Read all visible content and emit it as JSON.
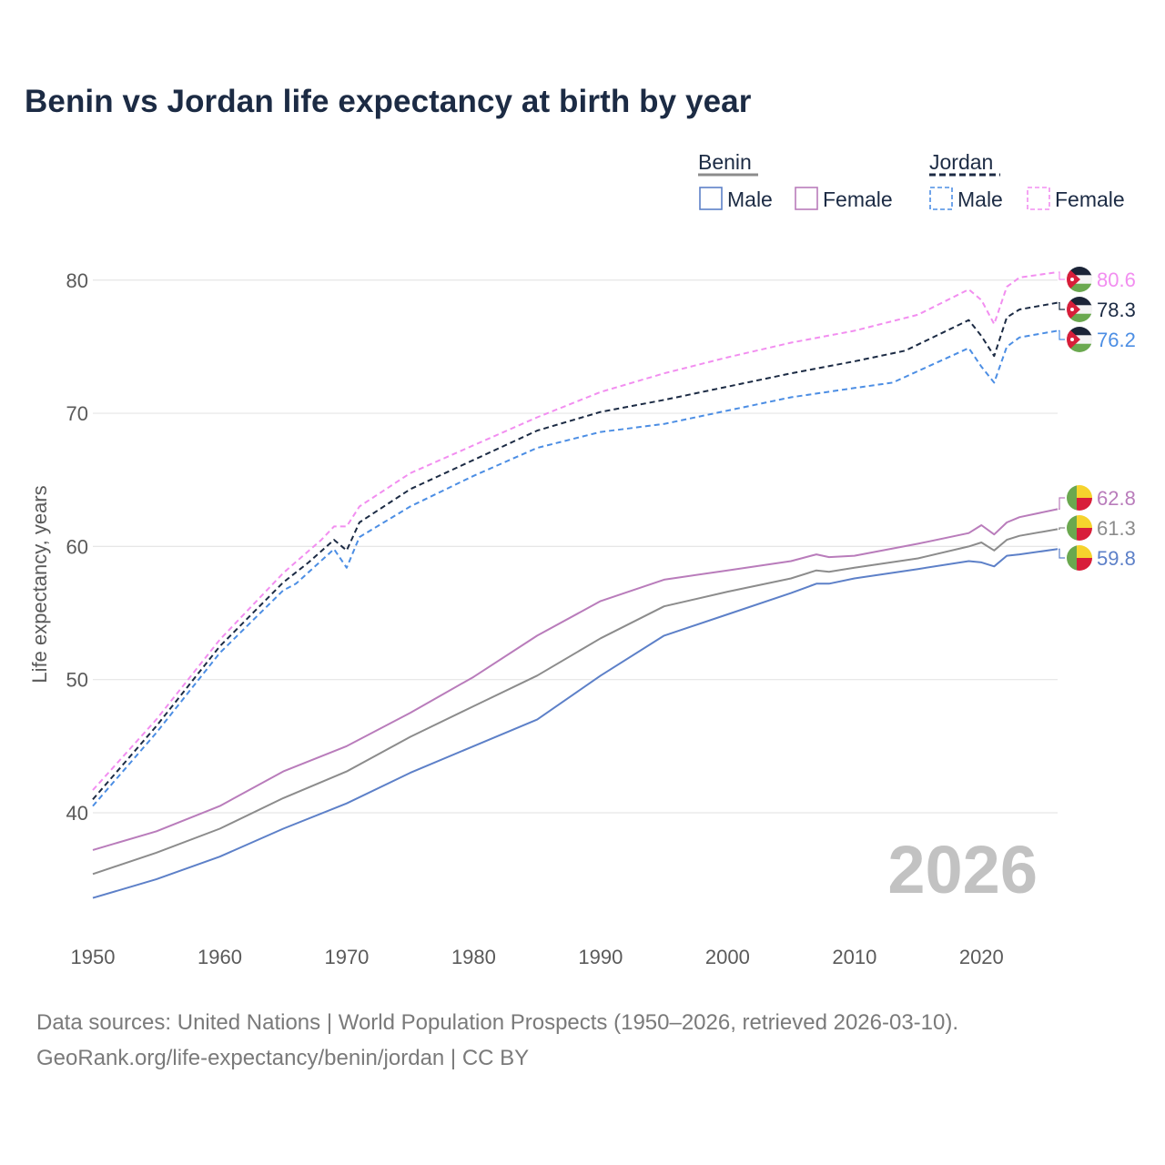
{
  "chart_data": {
    "type": "line",
    "title": "Benin vs Jordan life expectancy at birth by year",
    "ylabel": "Life expectancy, years",
    "xlabel": "",
    "xlim": [
      1950,
      2026
    ],
    "ylim": [
      32,
      86
    ],
    "x_ticks": [
      1950,
      1960,
      1970,
      1980,
      1990,
      2000,
      2010,
      2020
    ],
    "y_ticks": [
      40,
      50,
      60,
      70,
      80
    ],
    "grid": true,
    "current_year": "2026",
    "legend": {
      "placement": "top-right",
      "groups": [
        {
          "country": "Benin",
          "line_style": "solid",
          "color": "#8c8c8c",
          "entries": [
            "Male",
            "Female"
          ]
        },
        {
          "country": "Jordan",
          "line_style": "dashed",
          "color": "#1c2b44",
          "entries": [
            "Male",
            "Female"
          ]
        }
      ]
    },
    "series": [
      {
        "name": "Jordan Female",
        "country": "Jordan",
        "sex": "Female",
        "style": "dashed",
        "color": "#f28ef0",
        "end_label": "80.6",
        "points": [
          [
            1950,
            41.7
          ],
          [
            1955,
            47.0
          ],
          [
            1960,
            53.0
          ],
          [
            1965,
            58.0
          ],
          [
            1968,
            60.5
          ],
          [
            1969,
            61.5
          ],
          [
            1970,
            61.5
          ],
          [
            1971,
            63.0
          ],
          [
            1975,
            65.5
          ],
          [
            1980,
            67.6
          ],
          [
            1985,
            69.7
          ],
          [
            1990,
            71.6
          ],
          [
            1995,
            73.0
          ],
          [
            2000,
            74.2
          ],
          [
            2005,
            75.3
          ],
          [
            2010,
            76.2
          ],
          [
            2015,
            77.4
          ],
          [
            2019,
            79.3
          ],
          [
            2020,
            78.5
          ],
          [
            2021,
            76.7
          ],
          [
            2022,
            79.5
          ],
          [
            2023,
            80.2
          ],
          [
            2026,
            80.6
          ]
        ]
      },
      {
        "name": "Jordan Total",
        "country": "Jordan",
        "sex": "Total",
        "style": "dashed",
        "color": "#1c2b44",
        "end_label": "78.3",
        "points": [
          [
            1950,
            41.0
          ],
          [
            1955,
            46.5
          ],
          [
            1960,
            52.5
          ],
          [
            1965,
            57.3
          ],
          [
            1967,
            58.8
          ],
          [
            1969,
            60.5
          ],
          [
            1970,
            59.7
          ],
          [
            1971,
            61.8
          ],
          [
            1975,
            64.3
          ],
          [
            1980,
            66.5
          ],
          [
            1985,
            68.7
          ],
          [
            1990,
            70.1
          ],
          [
            1995,
            71.0
          ],
          [
            2000,
            72.0
          ],
          [
            2005,
            73.0
          ],
          [
            2010,
            73.9
          ],
          [
            2014,
            74.7
          ],
          [
            2019,
            77.0
          ],
          [
            2020,
            75.8
          ],
          [
            2021,
            74.3
          ],
          [
            2022,
            77.2
          ],
          [
            2023,
            77.8
          ],
          [
            2026,
            78.3
          ]
        ]
      },
      {
        "name": "Jordan Male",
        "country": "Jordan",
        "sex": "Male",
        "style": "dashed",
        "color": "#4c8ee4",
        "end_label": "76.2",
        "points": [
          [
            1950,
            40.5
          ],
          [
            1955,
            46.0
          ],
          [
            1960,
            52.0
          ],
          [
            1965,
            56.7
          ],
          [
            1966,
            57.2
          ],
          [
            1969,
            59.8
          ],
          [
            1970,
            58.4
          ],
          [
            1971,
            60.7
          ],
          [
            1975,
            63.0
          ],
          [
            1980,
            65.3
          ],
          [
            1985,
            67.4
          ],
          [
            1990,
            68.6
          ],
          [
            1995,
            69.2
          ],
          [
            2000,
            70.2
          ],
          [
            2005,
            71.2
          ],
          [
            2010,
            71.9
          ],
          [
            2013,
            72.3
          ],
          [
            2019,
            74.9
          ],
          [
            2020,
            73.5
          ],
          [
            2021,
            72.3
          ],
          [
            2022,
            75.0
          ],
          [
            2023,
            75.7
          ],
          [
            2026,
            76.2
          ]
        ]
      },
      {
        "name": "Benin Female",
        "country": "Benin",
        "sex": "Female",
        "style": "solid",
        "color": "#b97cbb",
        "end_label": "62.8",
        "points": [
          [
            1950,
            37.2
          ],
          [
            1955,
            38.6
          ],
          [
            1960,
            40.5
          ],
          [
            1965,
            43.1
          ],
          [
            1970,
            45.0
          ],
          [
            1975,
            47.5
          ],
          [
            1980,
            50.2
          ],
          [
            1985,
            53.3
          ],
          [
            1990,
            55.9
          ],
          [
            1995,
            57.5
          ],
          [
            2000,
            58.2
          ],
          [
            2005,
            58.9
          ],
          [
            2007,
            59.4
          ],
          [
            2008,
            59.2
          ],
          [
            2010,
            59.3
          ],
          [
            2015,
            60.2
          ],
          [
            2019,
            61.0
          ],
          [
            2020,
            61.6
          ],
          [
            2021,
            60.9
          ],
          [
            2022,
            61.8
          ],
          [
            2023,
            62.2
          ],
          [
            2026,
            62.8
          ]
        ]
      },
      {
        "name": "Benin Total",
        "country": "Benin",
        "sex": "Total",
        "style": "solid",
        "color": "#8c8c8c",
        "end_label": "61.3",
        "points": [
          [
            1950,
            35.4
          ],
          [
            1955,
            37.0
          ],
          [
            1960,
            38.8
          ],
          [
            1965,
            41.1
          ],
          [
            1970,
            43.1
          ],
          [
            1975,
            45.7
          ],
          [
            1980,
            48.0
          ],
          [
            1985,
            50.3
          ],
          [
            1990,
            53.1
          ],
          [
            1995,
            55.5
          ],
          [
            2000,
            56.6
          ],
          [
            2005,
            57.6
          ],
          [
            2007,
            58.2
          ],
          [
            2008,
            58.1
          ],
          [
            2010,
            58.4
          ],
          [
            2015,
            59.1
          ],
          [
            2019,
            60.0
          ],
          [
            2020,
            60.3
          ],
          [
            2021,
            59.7
          ],
          [
            2022,
            60.5
          ],
          [
            2023,
            60.8
          ],
          [
            2026,
            61.3
          ]
        ]
      },
      {
        "name": "Benin Male",
        "country": "Benin",
        "sex": "Male",
        "style": "solid",
        "color": "#5d80c8",
        "end_label": "59.8",
        "points": [
          [
            1950,
            33.6
          ],
          [
            1955,
            35.0
          ],
          [
            1960,
            36.7
          ],
          [
            1965,
            38.8
          ],
          [
            1970,
            40.7
          ],
          [
            1975,
            43.0
          ],
          [
            1980,
            45.0
          ],
          [
            1985,
            47.0
          ],
          [
            1990,
            50.3
          ],
          [
            1995,
            53.3
          ],
          [
            2000,
            54.9
          ],
          [
            2005,
            56.5
          ],
          [
            2007,
            57.2
          ],
          [
            2008,
            57.2
          ],
          [
            2010,
            57.6
          ],
          [
            2015,
            58.3
          ],
          [
            2019,
            58.9
          ],
          [
            2020,
            58.8
          ],
          [
            2021,
            58.5
          ],
          [
            2022,
            59.3
          ],
          [
            2023,
            59.4
          ],
          [
            2026,
            59.8
          ]
        ]
      }
    ]
  },
  "footer": {
    "source_line": "Data sources: United Nations | World Population Prospects (1950–2026, retrieved 2026-03-10).",
    "credit_line": "GeoRank.org/life-expectancy/benin/jordan | CC BY"
  }
}
